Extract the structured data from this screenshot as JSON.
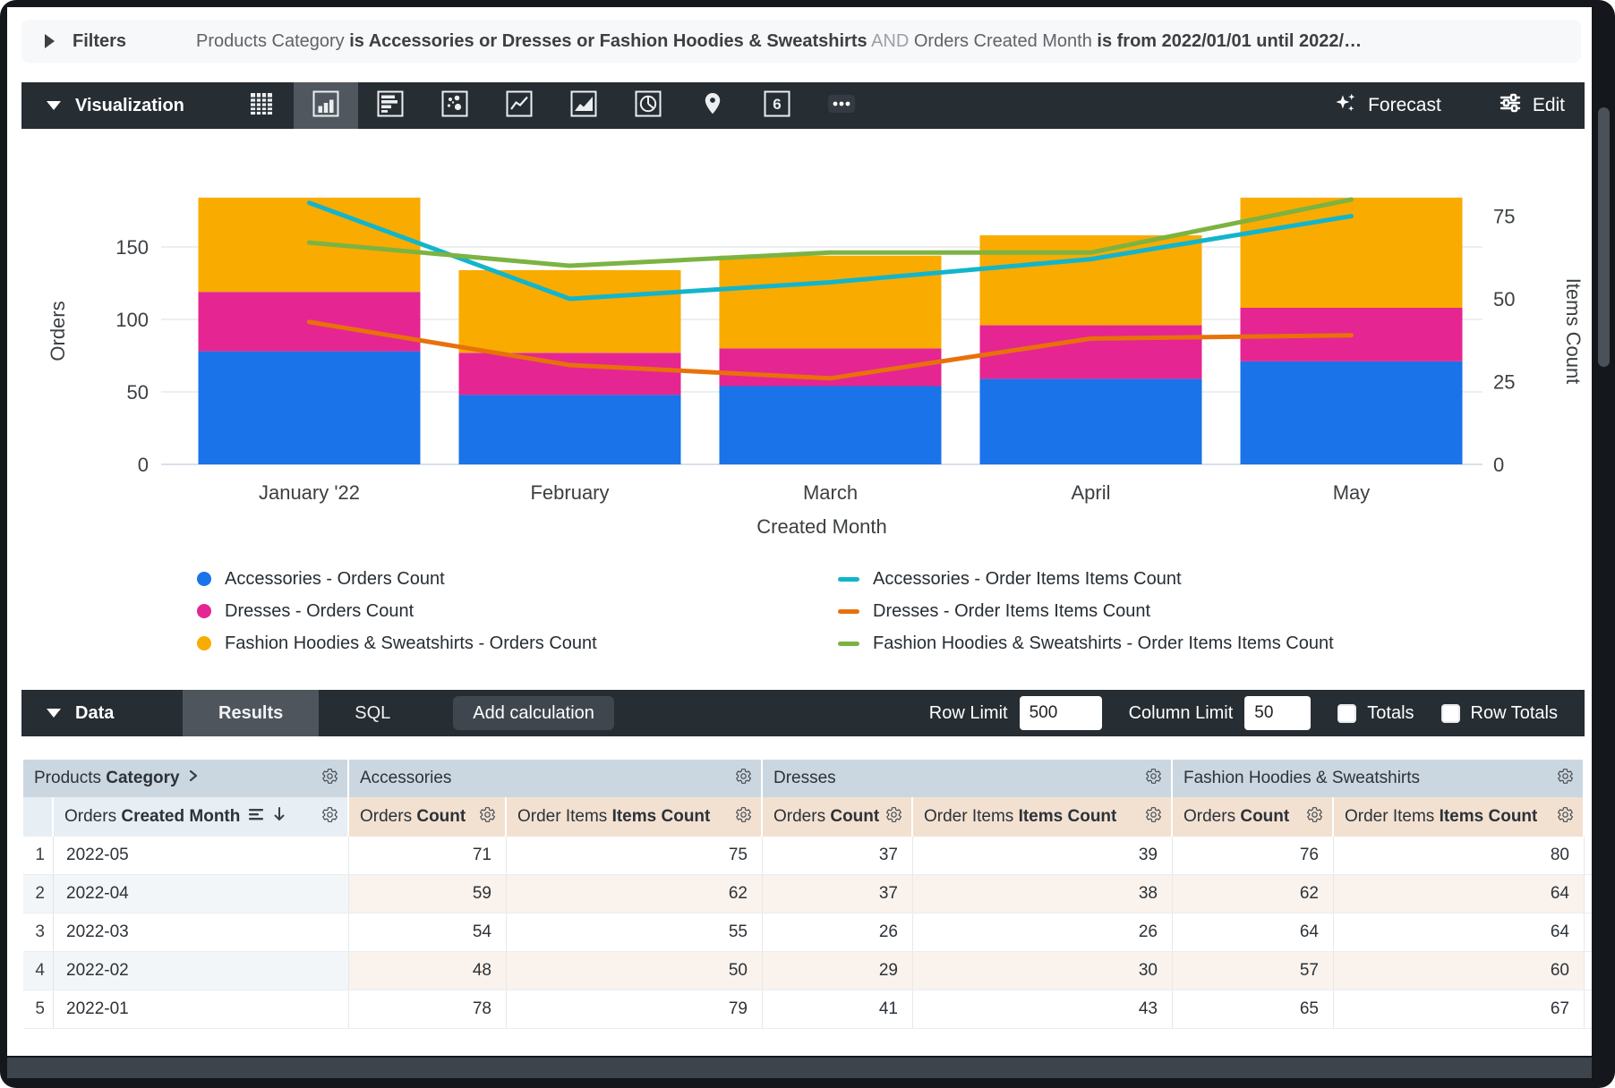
{
  "filters": {
    "label": "Filters",
    "segments": [
      {
        "text": "Products Category ",
        "style": "normal"
      },
      {
        "text": "is Accessories or Dresses or Fashion Hoodies & Sweatshirts",
        "style": "strong"
      },
      {
        "text": " AND ",
        "style": "dim"
      },
      {
        "text": "Orders Created Month ",
        "style": "normal"
      },
      {
        "text": "is from 2022/01/01 until 2022/…",
        "style": "strong"
      }
    ]
  },
  "viz_toolbar": {
    "title": "Visualization",
    "chart_types": [
      {
        "name": "table",
        "selected": false
      },
      {
        "name": "column",
        "selected": true
      },
      {
        "name": "bar",
        "selected": false
      },
      {
        "name": "scatter",
        "selected": false
      },
      {
        "name": "line",
        "selected": false
      },
      {
        "name": "area",
        "selected": false
      },
      {
        "name": "pie",
        "selected": false
      },
      {
        "name": "map",
        "selected": false
      },
      {
        "name": "single-value",
        "selected": false,
        "glyph": "6"
      },
      {
        "name": "more",
        "selected": false
      }
    ],
    "forecast_label": "Forecast",
    "edit_label": "Edit"
  },
  "chart_data": {
    "type": "combo: stacked column + line, dual y-axes",
    "x_categories": [
      "January '22",
      "February",
      "March",
      "April",
      "May"
    ],
    "x_axis_label": "Created Month",
    "left_axis": {
      "title": "Orders",
      "ticks": [
        0,
        50,
        100,
        150
      ],
      "max": 190
    },
    "right_axis": {
      "title": "Items Count",
      "ticks": [
        0,
        25,
        50,
        75
      ],
      "max": 82
    },
    "grid": true,
    "legend_position": "bottom",
    "bar_series": [
      {
        "name": "Accessories - Orders Count",
        "color": "#1A73E8",
        "values": [
          78,
          48,
          54,
          59,
          71
        ]
      },
      {
        "name": "Dresses - Orders Count",
        "color": "#E52592",
        "values": [
          41,
          29,
          26,
          37,
          37
        ]
      },
      {
        "name": "Fashion Hoodies & Sweatshirts - Orders Count",
        "color": "#F9AB00",
        "values": [
          65,
          57,
          64,
          62,
          76
        ]
      }
    ],
    "line_series": [
      {
        "name": "Accessories - Order Items Items Count",
        "color": "#12B5CB",
        "values": [
          79,
          50,
          55,
          62,
          75
        ]
      },
      {
        "name": "Dresses - Order Items Items Count",
        "color": "#E8710A",
        "values": [
          43,
          30,
          26,
          38,
          39
        ]
      },
      {
        "name": "Fashion Hoodies & Sweatshirts - Order Items Items Count",
        "color": "#7CB342",
        "values": [
          67,
          60,
          64,
          64,
          80
        ]
      }
    ]
  },
  "data_toolbar": {
    "title": "Data",
    "tabs": [
      {
        "label": "Results",
        "active": true
      },
      {
        "label": "SQL",
        "active": false
      }
    ],
    "add_calculation_label": "Add calculation",
    "row_limit": {
      "label": "Row Limit",
      "value": "500"
    },
    "column_limit": {
      "label": "Column Limit",
      "value": "50"
    },
    "totals": {
      "label": "Totals",
      "checked": false
    },
    "row_totals": {
      "label": "Row Totals",
      "checked": false
    }
  },
  "table": {
    "pivot_header": {
      "normal": "Products ",
      "bold": "Category"
    },
    "dimension_header": {
      "normal": "Orders ",
      "bold": "Created Month"
    },
    "groups": [
      {
        "label": "Accessories",
        "measures": [
          {
            "normal": "Orders ",
            "bold": "Count"
          },
          {
            "normal": "Order Items ",
            "bold": "Items Count"
          }
        ]
      },
      {
        "label": "Dresses",
        "measures": [
          {
            "normal": "Orders ",
            "bold": "Count"
          },
          {
            "normal": "Order Items ",
            "bold": "Items Count"
          }
        ]
      },
      {
        "label": "Fashion Hoodies & Sweatshirts",
        "measures": [
          {
            "normal": "Orders ",
            "bold": "Count"
          },
          {
            "normal": "Order Items ",
            "bold": "Items Count"
          }
        ]
      }
    ],
    "rows": [
      {
        "index": "1",
        "month": "2022-05",
        "values": [
          "71",
          "75",
          "37",
          "39",
          "76",
          "80"
        ]
      },
      {
        "index": "2",
        "month": "2022-04",
        "values": [
          "59",
          "62",
          "37",
          "38",
          "62",
          "64"
        ]
      },
      {
        "index": "3",
        "month": "2022-03",
        "values": [
          "54",
          "55",
          "26",
          "26",
          "64",
          "64"
        ]
      },
      {
        "index": "4",
        "month": "2022-02",
        "values": [
          "48",
          "50",
          "29",
          "30",
          "57",
          "60"
        ]
      },
      {
        "index": "5",
        "month": "2022-01",
        "values": [
          "78",
          "79",
          "41",
          "43",
          "65",
          "67"
        ]
      }
    ]
  },
  "colors": {
    "toolbar_bg": "#262D33",
    "accessories_bar": "#1A73E8",
    "dresses_bar": "#E52592",
    "fashion_bar": "#F9AB00",
    "accessories_line": "#12B5CB",
    "dresses_line": "#E8710A",
    "fashion_line": "#7CB342"
  }
}
